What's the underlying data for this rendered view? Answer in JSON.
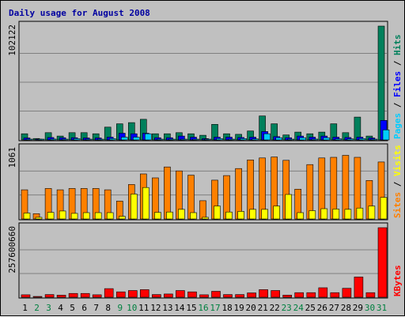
{
  "chart_data": {
    "type": "bar",
    "title": "Daily usage for August 2008",
    "categories": [
      "1",
      "2",
      "3",
      "4",
      "5",
      "6",
      "7",
      "8",
      "9",
      "10",
      "11",
      "12",
      "13",
      "14",
      "15",
      "16",
      "17",
      "18",
      "19",
      "20",
      "21",
      "22",
      "23",
      "24",
      "25",
      "26",
      "27",
      "28",
      "29",
      "30",
      "31"
    ],
    "weekend_days": [
      "2",
      "3",
      "9",
      "10",
      "16",
      "17",
      "23",
      "24",
      "30",
      "31"
    ],
    "panels": [
      {
        "name": "hits-files-pages",
        "ymax_label": "102122",
        "ymax": 102122,
        "series": [
          {
            "name": "Hits",
            "color": "#00805c",
            "values": [
              5500,
              1300,
              6500,
              3500,
              6500,
              6500,
              5500,
              11500,
              14500,
              15500,
              18500,
              5500,
              5500,
              6500,
              5500,
              4200,
              14000,
              5500,
              5000,
              8000,
              21500,
              14500,
              4500,
              7000,
              5500,
              7000,
              14500,
              6500,
              20500,
              3500,
              102122
            ]
          },
          {
            "name": "Files",
            "color": "#0000ff",
            "values": [
              1800,
              400,
              2200,
              2000,
              2000,
              1800,
              1800,
              2500,
              6000,
              5500,
              6000,
              2000,
              2000,
              3500,
              2500,
              1200,
              2500,
              2500,
              2200,
              2500,
              7500,
              3000,
              2000,
              3500,
              2500,
              3500,
              2500,
              2200,
              2500,
              1800,
              17500
            ]
          },
          {
            "name": "Pages",
            "color": "#00ccff",
            "values": [
              600,
              200,
              800,
              700,
              1200,
              700,
              700,
              1200,
              2500,
              2500,
              5500,
              700,
              700,
              700,
              700,
              500,
              1200,
              700,
              1200,
              900,
              5500,
              2000,
              700,
              2000,
              800,
              2000,
              1000,
              900,
              1200,
              700,
              9000
            ]
          }
        ],
        "side_labels": [
          "Pages",
          "Files",
          "Hits"
        ],
        "side_colors": [
          "#00ccff",
          "#0000ff",
          "#00805c"
        ]
      },
      {
        "name": "visits-sites",
        "ymax_label": "1061",
        "ymax": 1061,
        "series": [
          {
            "name": "Visits",
            "color": "#ff8000",
            "values": [
              440,
              80,
              460,
              440,
              460,
              460,
              460,
              440,
              270,
              520,
              680,
              620,
              785,
              725,
              660,
              275,
              585,
              655,
              760,
              890,
              920,
              935,
              885,
              450,
              820,
              920,
              930,
              960,
              930,
              580,
              860
            ]
          },
          {
            "name": "Sites",
            "color": "#ffff00",
            "values": [
              90,
              25,
              100,
              120,
              85,
              95,
              95,
              95,
              40,
              375,
              475,
              100,
              105,
              145,
              95,
              25,
              195,
              105,
              115,
              145,
              145,
              195,
              370,
              95,
              125,
              155,
              150,
              145,
              165,
              195,
              325
            ]
          }
        ],
        "side_labels": [
          "Sites",
          "Visits"
        ],
        "side_colors": [
          "#ff8000",
          "#ffff00"
        ]
      },
      {
        "name": "kbytes",
        "ymax_label": "257600660",
        "ymax": 257600660,
        "series": [
          {
            "name": "KBytes",
            "color": "#ff0000",
            "values": [
              9000000,
              3000000,
              10000000,
              7500000,
              14000000,
              14000000,
              9000000,
              32000000,
              20000000,
              25000000,
              28000000,
              10000000,
              12000000,
              25000000,
              20000000,
              9000000,
              22000000,
              10000000,
              10000000,
              16000000,
              28000000,
              25000000,
              8000000,
              17000000,
              17000000,
              35000000,
              17000000,
              33000000,
              75000000,
              17000000,
              257600660
            ]
          }
        ],
        "side_labels": [
          "KBytes"
        ],
        "side_colors": [
          "#ff0000"
        ]
      }
    ],
    "weekday_color": "#000000",
    "weekend_color": "#008040"
  }
}
